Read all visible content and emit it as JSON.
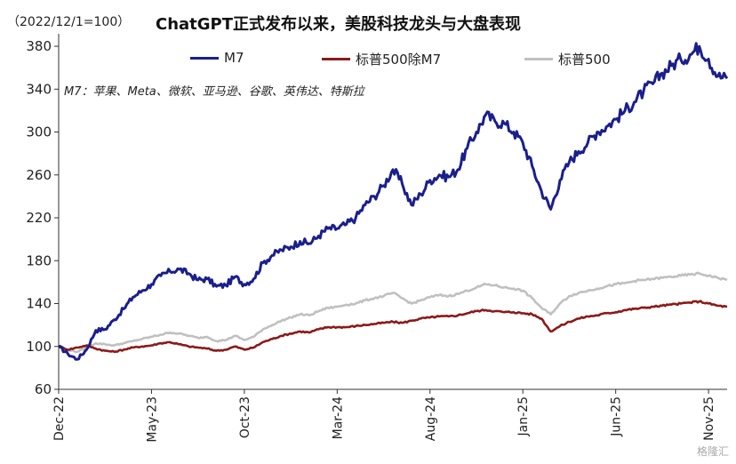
{
  "header": {
    "note": "（2022/12/1=100）",
    "title": "ChatGPT正式发布以来，美股科技龙头与大盘表现",
    "subnote": "M7：苹果、Meta、微软、亚马逊、谷歌、英伟达、特斯拉"
  },
  "watermark": "格隆汇",
  "chart_data": {
    "type": "line",
    "ylim": [
      60,
      390
    ],
    "yticks": [
      60,
      100,
      140,
      180,
      220,
      260,
      300,
      340,
      380
    ],
    "xticks": [
      {
        "label": "Dec-22",
        "t": 0
      },
      {
        "label": "May-23",
        "t": 5
      },
      {
        "label": "Oct-23",
        "t": 10
      },
      {
        "label": "Mar-24",
        "t": 15
      },
      {
        "label": "Aug-24",
        "t": 20
      },
      {
        "label": "Jan-25",
        "t": 25
      },
      {
        "label": "Jun-25",
        "t": 30
      },
      {
        "label": "Nov-25",
        "t": 35
      }
    ],
    "x_months": [
      0,
      0.5,
      1,
      1.5,
      2,
      2.5,
      3,
      3.5,
      4,
      4.5,
      5,
      5.5,
      6,
      6.5,
      7,
      7.5,
      8,
      8.5,
      9,
      9.5,
      10,
      10.5,
      11,
      11.5,
      12,
      12.5,
      13,
      13.5,
      14,
      14.5,
      15,
      15.5,
      16,
      16.5,
      17,
      17.5,
      18,
      18.5,
      19,
      19.5,
      20,
      20.5,
      21,
      21.5,
      22,
      22.5,
      23,
      23.5,
      24,
      24.5,
      25,
      25.5,
      26,
      26.5,
      27,
      27.5,
      28,
      28.5,
      29,
      29.5,
      30,
      30.5,
      31,
      31.5,
      32,
      32.5,
      33,
      33.5,
      34,
      34.5,
      35,
      35.5,
      36
    ],
    "series": [
      {
        "name": "M7",
        "color": "#1a1f8c",
        "values": [
          100,
          93,
          88,
          97,
          115,
          116,
          125,
          135,
          146,
          152,
          158,
          166,
          170,
          172,
          168,
          162,
          163,
          156,
          157,
          165,
          158,
          163,
          178,
          185,
          190,
          193,
          198,
          196,
          203,
          210,
          210,
          214,
          220,
          232,
          240,
          250,
          265,
          252,
          232,
          242,
          255,
          260,
          258,
          265,
          285,
          300,
          316,
          310,
          308,
          300,
          290,
          268,
          245,
          228,
          255,
          272,
          282,
          290,
          300,
          305,
          312,
          320,
          328,
          338,
          345,
          355,
          362,
          368,
          372,
          380,
          368,
          352,
          350
        ]
      },
      {
        "name": "标普500除M7",
        "color": "#8b1a1a",
        "values": [
          100,
          97,
          99,
          101,
          98,
          96,
          95,
          97,
          99,
          100,
          101,
          103,
          104,
          102,
          100,
          99,
          98,
          96,
          97,
          100,
          97,
          99,
          104,
          107,
          110,
          112,
          114,
          113,
          116,
          118,
          118,
          118,
          119,
          120,
          121,
          122,
          123,
          122,
          124,
          126,
          127,
          128,
          128,
          129,
          131,
          133,
          134,
          133,
          132,
          132,
          131,
          130,
          126,
          114,
          119,
          123,
          126,
          128,
          129,
          131,
          132,
          134,
          135,
          136,
          137,
          138,
          139,
          140,
          141,
          142,
          140,
          138,
          137
        ]
      },
      {
        "name": "标普500",
        "color": "#c0c0c0",
        "values": [
          100,
          97,
          95,
          99,
          103,
          102,
          101,
          103,
          105,
          107,
          109,
          111,
          113,
          112,
          110,
          108,
          109,
          105,
          106,
          110,
          106,
          109,
          116,
          120,
          124,
          127,
          130,
          129,
          133,
          136,
          137,
          139,
          140,
          143,
          145,
          147,
          150,
          145,
          140,
          143,
          146,
          148,
          147,
          149,
          152,
          155,
          158,
          157,
          155,
          154,
          152,
          145,
          136,
          130,
          140,
          147,
          150,
          152,
          154,
          156,
          158,
          159,
          161,
          162,
          163,
          164,
          165,
          166,
          167,
          168,
          166,
          164,
          162
        ]
      }
    ]
  }
}
